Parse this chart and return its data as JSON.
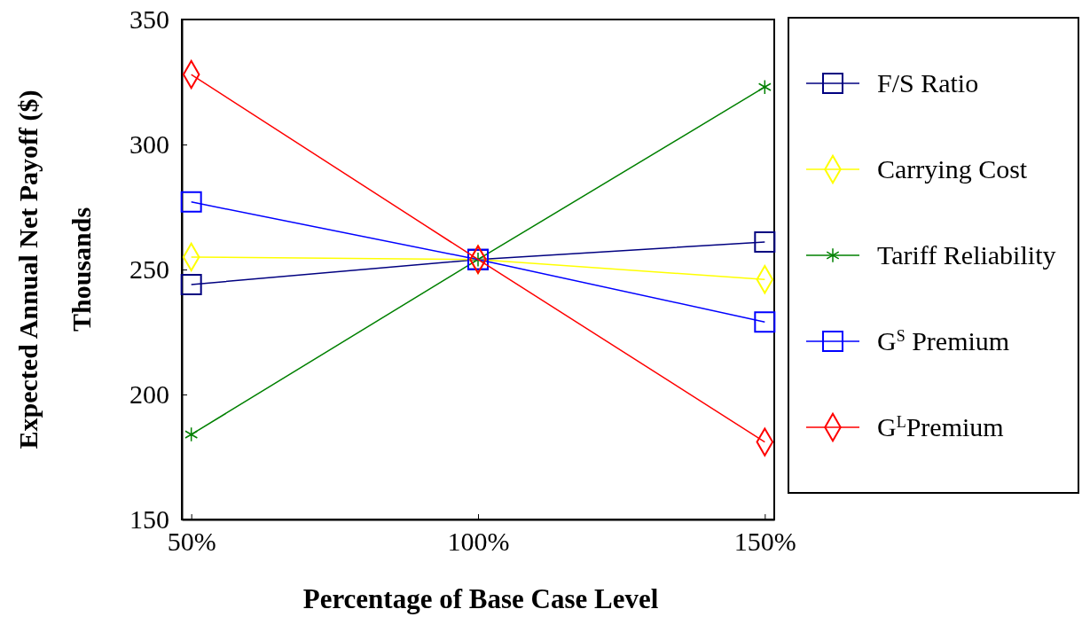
{
  "chart_data": {
    "type": "line",
    "xlabel": "Percentage of Base Case Level",
    "ylabel": "Expected Annual Net Payoff ($)\nThousands",
    "categories": [
      "50%",
      "100%",
      "150%"
    ],
    "ylim": [
      150,
      350
    ],
    "yticks": [
      150,
      200,
      250,
      300,
      350
    ],
    "legend": "right",
    "grid": false,
    "series": [
      {
        "name": "F/S Ratio",
        "color": "#000080",
        "marker": "square",
        "values": [
          244,
          254,
          261
        ]
      },
      {
        "name": "Carrying Cost",
        "color": "#ffff00",
        "marker": "diamond",
        "values": [
          255,
          254,
          246
        ]
      },
      {
        "name": "Tariff Reliability",
        "color": "#008000",
        "marker": "cross",
        "values": [
          184,
          254,
          323
        ]
      },
      {
        "name": "G$^{S}$ Premium",
        "color": "#0000ff",
        "marker": "square",
        "values": [
          277,
          254,
          229
        ]
      },
      {
        "name": "G$^{L}$Premium",
        "color": "#ff0000",
        "marker": "diamond",
        "values": [
          328,
          254,
          181
        ]
      }
    ]
  }
}
